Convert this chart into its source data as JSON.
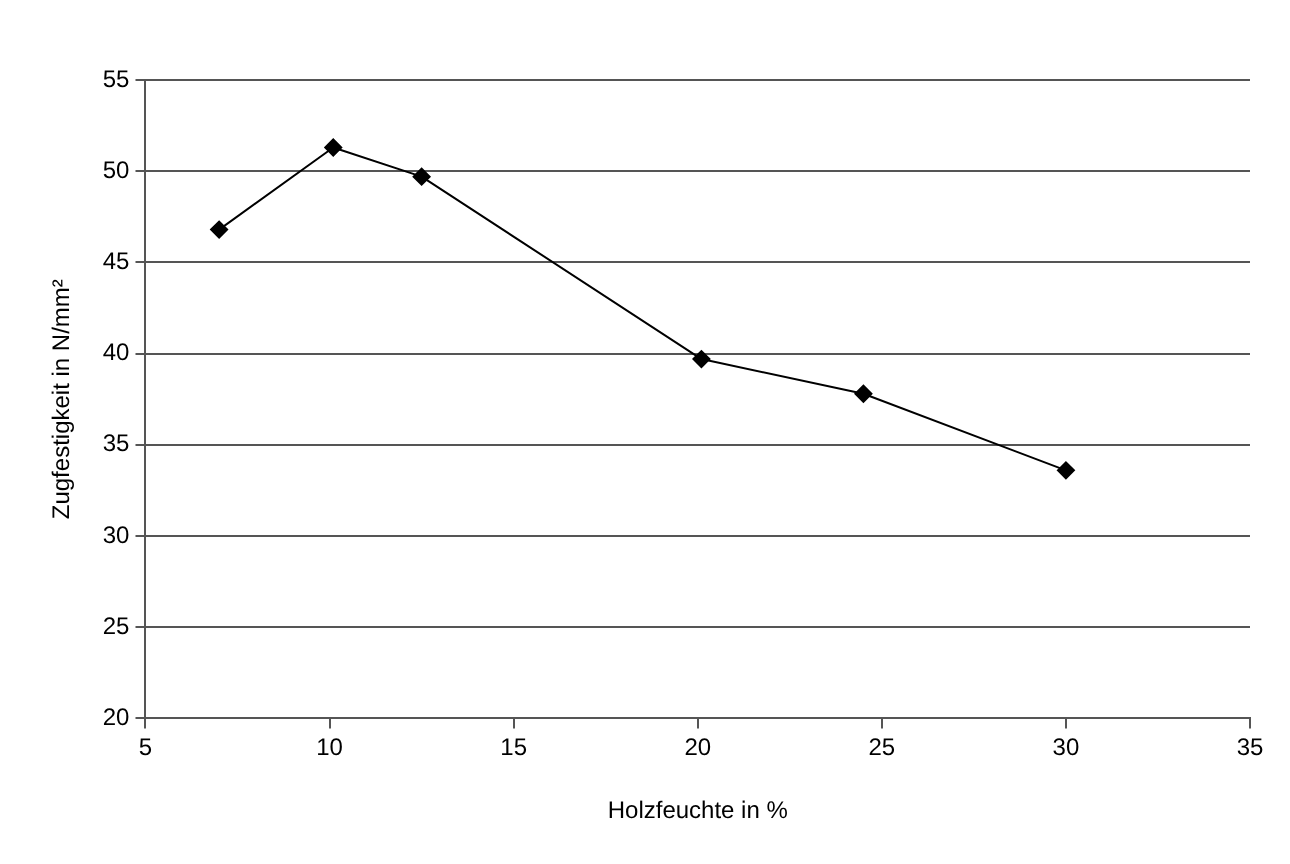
{
  "chart_data": {
    "type": "line",
    "xlabel": "Holzfeuchte in %",
    "ylabel": "Zugfestigkeit in N/mm²",
    "x": [
      7,
      10.1,
      12.5,
      20.1,
      24.5,
      30
    ],
    "series": [
      {
        "color": "#000000",
        "values": [
          46.8,
          51.3,
          49.7,
          39.7,
          37.8,
          33.6
        ]
      }
    ],
    "xlim": [
      5,
      35
    ],
    "xticks": [
      5,
      10,
      15,
      20,
      25,
      30,
      35
    ],
    "ylim": [
      20,
      55
    ],
    "yticks": [
      20,
      25,
      30,
      35,
      40,
      45,
      50,
      55
    ],
    "grid": "y",
    "legend": false,
    "marker": "diamond",
    "line_style": "solid"
  }
}
